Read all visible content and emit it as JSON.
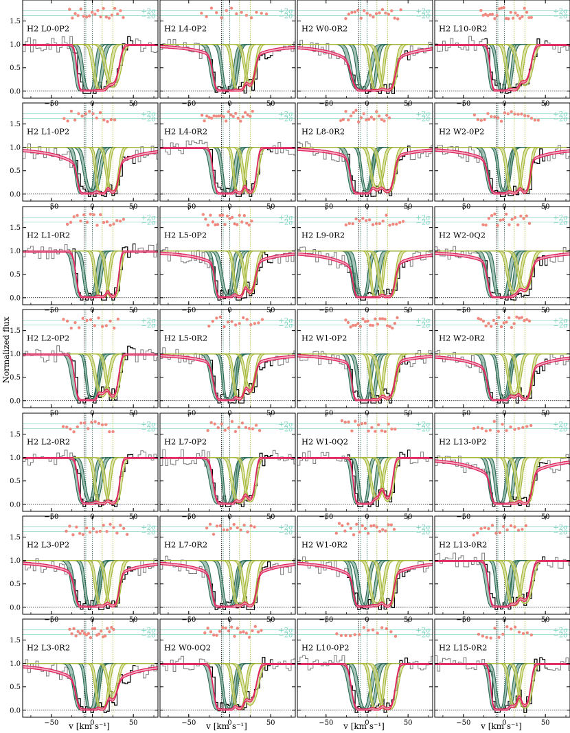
{
  "figure": {
    "ylabel": "Normalized flux",
    "xlabel": "v [km s⁻¹]"
  },
  "colors": {
    "data_gray": "#7a7a7a",
    "data_black": "#000000",
    "model_red": "#e0245e",
    "model_red_band": "#f29ab5",
    "comp_dark": "#2e6f55",
    "comp_dark_fill": "#7fa99a",
    "comp_light": "#a8b83a",
    "comp_light_fill": "#cfd98a",
    "residual": "#f08a80",
    "sigma_line": "#a8e0d4",
    "sigma_text": "#7fd4c0",
    "vline_dark": "#2e6f55",
    "vline_light": "#a8b83a",
    "vline_black": "#000000"
  },
  "chart_data": {
    "type": "line",
    "layout": {
      "rows": 7,
      "cols": 4
    },
    "xlim": [
      -85,
      80
    ],
    "ylim": [
      -0.15,
      1.95
    ],
    "xticks": [
      -50,
      0,
      50
    ],
    "yticks": [
      0.0,
      0.5,
      1.0,
      1.5
    ],
    "ytick_labels": [
      "0.0",
      "0.5",
      "1.0",
      "1.5"
    ],
    "xtick_labels": [
      "−50",
      "0",
      "50"
    ],
    "sigma_labels": [
      "+2σ",
      "−2σ"
    ],
    "sigma_levels": [
      1.72,
      1.62
    ],
    "component_velocities_dark": [
      -8,
      0
    ],
    "component_velocities_light": [
      12,
      25
    ],
    "component_velocity_black": [
      -10
    ],
    "panels": [
      {
        "label": "H2 L0-0P2",
        "col": 0,
        "row": 0
      },
      {
        "label": "H2 L4-0P2",
        "col": 1,
        "row": 0
      },
      {
        "label": "H2 W0-0R2",
        "col": 2,
        "row": 0
      },
      {
        "label": "H2 L10-0R2",
        "col": 3,
        "row": 0
      },
      {
        "label": "H2 L1-0P2",
        "col": 0,
        "row": 1
      },
      {
        "label": "H2 L4-0R2",
        "col": 1,
        "row": 1
      },
      {
        "label": "H2 L8-0R2",
        "col": 2,
        "row": 1
      },
      {
        "label": "H2 W2-0P2",
        "col": 3,
        "row": 1
      },
      {
        "label": "H2 L1-0R2",
        "col": 0,
        "row": 2
      },
      {
        "label": "H2 L5-0P2",
        "col": 1,
        "row": 2
      },
      {
        "label": "H2 L9-0R2",
        "col": 2,
        "row": 2
      },
      {
        "label": "H2 W2-0Q2",
        "col": 3,
        "row": 2
      },
      {
        "label": "H2 L2-0P2",
        "col": 0,
        "row": 3
      },
      {
        "label": "H2 L5-0R2",
        "col": 1,
        "row": 3
      },
      {
        "label": "H2 W1-0P2",
        "col": 2,
        "row": 3
      },
      {
        "label": "H2 W2-0R2",
        "col": 3,
        "row": 3
      },
      {
        "label": "H2 L2-0R2",
        "col": 0,
        "row": 4
      },
      {
        "label": "H2 L7-0P2",
        "col": 1,
        "row": 4
      },
      {
        "label": "H2 W1-0Q2",
        "col": 2,
        "row": 4
      },
      {
        "label": "H2 L13-0P2",
        "col": 3,
        "row": 4
      },
      {
        "label": "H2 L3-0P2",
        "col": 0,
        "row": 5
      },
      {
        "label": "H2 L7-0R2",
        "col": 1,
        "row": 5
      },
      {
        "label": "H2 W1-0R2",
        "col": 2,
        "row": 5
      },
      {
        "label": "H2 L13-0R2",
        "col": 3,
        "row": 5
      },
      {
        "label": "H2 L3-0R2",
        "col": 0,
        "row": 6
      },
      {
        "label": "H2 W0-0Q2",
        "col": 1,
        "row": 6
      },
      {
        "label": "H2 L10-0P2",
        "col": 2,
        "row": 6
      },
      {
        "label": "H2 L15-0R2",
        "col": 3,
        "row": 6
      }
    ]
  }
}
